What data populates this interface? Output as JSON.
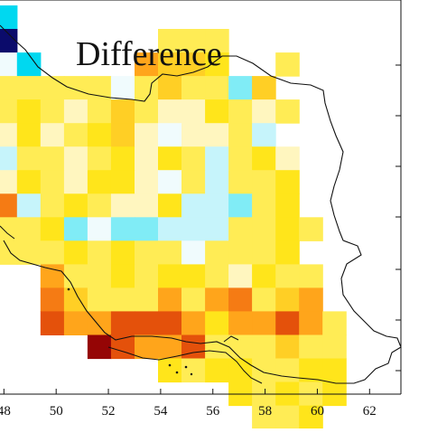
{
  "title": "Difference",
  "map": {
    "x_ticks": [
      "48",
      "50",
      "52",
      "54",
      "56",
      "58",
      "60",
      "62"
    ],
    "x_tick_values": [
      48,
      50,
      52,
      54,
      56,
      58,
      60,
      62
    ],
    "lon_range": [
      47.85,
      63.2
    ],
    "grid_origin_lon": 47.6,
    "cell_size_deg": 0.9,
    "palette": {
      "N": "#0b0b6b",
      "B": "#00d8f0",
      "C": "#80ecf6",
      "L": "#c6f4fb",
      "W": "#f0fbfd",
      "P": "#fff6bf",
      "Y": "#ffec55",
      "Z": "#ffe51b",
      "G": "#ffcf25",
      "O": "#ffa51b",
      "D": "#f57b14",
      "R": "#e4510b",
      "M": "#950505",
      "_": "#ffffff"
    },
    "cell_rows": [
      {
        "row": 0,
        "cells": "B"
      },
      {
        "row": 1,
        "cells": "N"
      },
      {
        "row": 2,
        "cells": ""
      },
      {
        "row": 3,
        "cells": ""
      },
      {
        "row": 4,
        "cells": ""
      },
      {
        "row": 5,
        "cells": ""
      },
      {
        "row": 6,
        "cells": ""
      },
      {
        "row": 7,
        "cells": ""
      },
      {
        "row": 8,
        "cells": ""
      },
      {
        "row": 9,
        "cells": ""
      },
      {
        "row": 10,
        "cells": ""
      },
      {
        "row": 11,
        "cells": ""
      },
      {
        "row": 12,
        "cells": ""
      },
      {
        "row": 13,
        "cells": ""
      },
      {
        "row": 14,
        "cells": ""
      },
      {
        "row": 15,
        "cells": ""
      },
      {
        "row": 16,
        "cells": ""
      },
      {
        "row": 17,
        "cells": ""
      }
    ],
    "cell_grid": [
      "B..............",
      "N......YYY.....",
      "WB....OGGZ..Y..",
      "YYYYYWYGYYCG...",
      "YZYPYGYPPZYPY..",
      "PZPYZGPWPPYL...",
      "LYYPYZPZYLYZP..",
      "PZYPZZPWYLYYZ..",
      "DLYZYPPZLLCYZ..",
      "YYZCWCCLLLYYZY.",
      "YYYZYZYYWYYYZ..",
      "..OYYZYZZYPZYY.",
      "..DGYYYOYODYGO.",
      "..ROORRROZOOROY",
      "....MROORYYYGYY",
      ".......ZYZZYYZZ",
      "..........ZYZYZ",
      "...........YYZ."
    ],
    "colors": {
      "border": "#111111",
      "frame": "#111111"
    }
  }
}
